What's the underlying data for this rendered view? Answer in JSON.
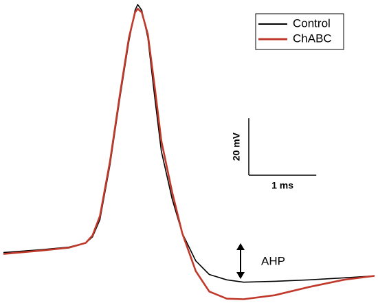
{
  "chart_data": {
    "type": "line",
    "x": [
      0,
      0.56,
      0.97,
      1.22,
      1.32,
      1.43,
      1.58,
      1.73,
      1.86,
      1.95,
      1.99,
      2.05,
      2.14,
      2.24,
      2.34,
      2.5,
      2.65,
      2.85,
      3.05,
      3.31,
      3.56,
      4.02,
      4.53,
      5.04,
      5.5
    ],
    "series": [
      {
        "name": "Control",
        "color": "#000000",
        "values": [
          0,
          1.0,
          1.9,
          3.4,
          5.5,
          11.6,
          30.9,
          55.0,
          74.3,
          85.1,
          87.1,
          85.1,
          75.5,
          55.0,
          35.7,
          18.8,
          6.8,
          -2.9,
          -7.7,
          -9.6,
          -10.4,
          -10.1,
          -9.6,
          -8.9,
          -8.2
        ]
      },
      {
        "name": "ChABC",
        "color": "#c0392b",
        "values": [
          -0.5,
          0.7,
          1.7,
          3.4,
          6.0,
          12.8,
          32.1,
          56.2,
          75.5,
          84.4,
          85.6,
          84.4,
          76.7,
          58.6,
          39.3,
          21.2,
          6.8,
          -6.5,
          -13.7,
          -16.2,
          -16.4,
          -15.0,
          -12.1,
          -9.6,
          -8.2
        ]
      }
    ],
    "xlim": [
      0,
      5.5
    ],
    "ylim": [
      -17,
      88
    ],
    "scale_bar": {
      "y_value": 20,
      "y_label": "20 mV",
      "x_value": 1,
      "x_label": "1 ms"
    },
    "annotation": "AHP",
    "legend": "upper right"
  }
}
